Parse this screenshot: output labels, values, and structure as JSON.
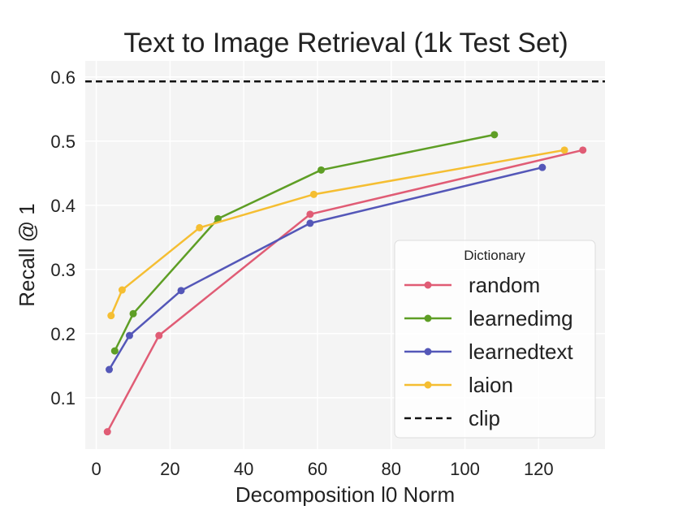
{
  "chart_data": {
    "type": "line",
    "title": "Text to Image Retrieval (1k Test Set)",
    "xlabel": "Decomposition l0 Norm",
    "ylabel": "Recall @ 1",
    "xlim": [
      -3,
      138
    ],
    "ylim": [
      0.02,
      0.625
    ],
    "xticks": [
      0,
      20,
      40,
      60,
      80,
      100,
      120
    ],
    "yticks": [
      0.1,
      0.2,
      0.3,
      0.4,
      0.5,
      0.6
    ],
    "grid": true,
    "background": "#f4f4f4",
    "legend": {
      "title": "Dictionary",
      "placement": "lower-right"
    },
    "series": [
      {
        "name": "random",
        "color": "#e05c75",
        "x": [
          3,
          17,
          58,
          132
        ],
        "y": [
          0.047,
          0.197,
          0.386,
          0.486
        ]
      },
      {
        "name": "learnedimg",
        "color": "#5e9e25",
        "x": [
          5,
          10,
          33,
          61,
          108
        ],
        "y": [
          0.173,
          0.231,
          0.379,
          0.455,
          0.51
        ]
      },
      {
        "name": "learnedtext",
        "color": "#5457b8",
        "x": [
          3.5,
          9,
          23,
          58,
          121
        ],
        "y": [
          0.144,
          0.197,
          0.267,
          0.372,
          0.459
        ]
      },
      {
        "name": "laion",
        "color": "#f5be32",
        "x": [
          4,
          7,
          28,
          59,
          127
        ],
        "y": [
          0.228,
          0.268,
          0.365,
          0.417,
          0.486
        ]
      }
    ],
    "reference_lines": [
      {
        "name": "clip",
        "color": "#111111",
        "style": "dashed",
        "y": 0.593
      }
    ]
  }
}
